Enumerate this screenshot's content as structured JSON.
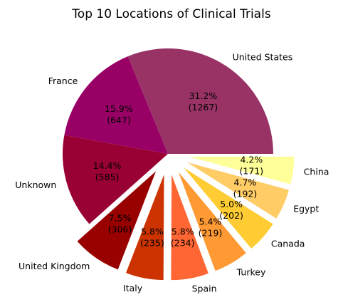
{
  "chart_data": {
    "type": "pie",
    "title": "Top 10 Locations of Clinical Trials",
    "slices": [
      {
        "label": "United States",
        "value": 1267,
        "pct_label": "31.2%",
        "count_label": "(1267)",
        "color": "#993366",
        "exploded": false
      },
      {
        "label": "France",
        "value": 647,
        "pct_label": "15.9%",
        "count_label": "(647)",
        "color": "#990066",
        "exploded": false
      },
      {
        "label": "Unknown",
        "value": 585,
        "pct_label": "14.4%",
        "count_label": "(585)",
        "color": "#990033",
        "exploded": false
      },
      {
        "label": "United Kingdom",
        "value": 306,
        "pct_label": "7.5%",
        "count_label": "(306)",
        "color": "#990000",
        "exploded": true
      },
      {
        "label": "Italy",
        "value": 235,
        "pct_label": "5.8%",
        "count_label": "(235)",
        "color": "#cc3300",
        "exploded": true
      },
      {
        "label": "Spain",
        "value": 234,
        "pct_label": "5.8%",
        "count_label": "(234)",
        "color": "#ff6633",
        "exploded": true
      },
      {
        "label": "Turkey",
        "value": 219,
        "pct_label": "5.4%",
        "count_label": "(219)",
        "color": "#ff9933",
        "exploded": true
      },
      {
        "label": "Canada",
        "value": 202,
        "pct_label": "5.0%",
        "count_label": "(202)",
        "color": "#ffcc33",
        "exploded": true
      },
      {
        "label": "Egypt",
        "value": 192,
        "pct_label": "4.7%",
        "count_label": "(192)",
        "color": "#ffcc66",
        "exploded": true
      },
      {
        "label": "China",
        "value": 171,
        "pct_label": "4.2%",
        "count_label": "(171)",
        "color": "#ffff99",
        "exploded": true
      }
    ]
  }
}
